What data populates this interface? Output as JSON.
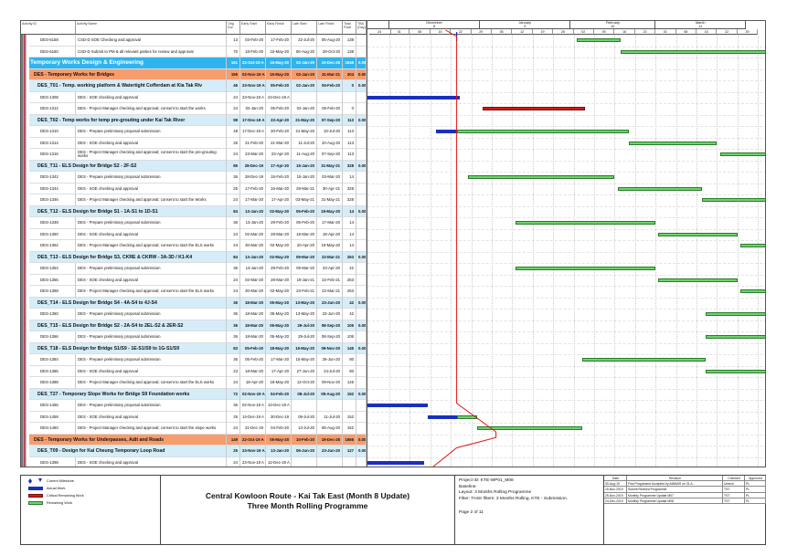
{
  "columns": {
    "id": "Activity ID",
    "name": "Activity Name",
    "dur": "Orig Dur",
    "es": "Early Start",
    "ef": "Early Finish",
    "ls": "Late Start",
    "lf": "Late Finish",
    "tf": "Total Float",
    "tba": "TBA (Day)"
  },
  "timeline": {
    "months": [
      {
        "label": "December",
        "num": "8",
        "start": "01-Dec-19",
        "end": "01-Jan-20"
      },
      {
        "label": "January",
        "num": "9",
        "start": "01-Jan-20",
        "end": "01-Feb-20"
      },
      {
        "label": "February",
        "num": "10",
        "start": "01-Feb-20",
        "end": "01-Mar-20"
      },
      {
        "label": "March",
        "num": "11",
        "start": "01-Mar-20",
        "end": "01-Apr-20"
      }
    ],
    "weeks": [
      "24",
      "01",
      "08",
      "15",
      "22",
      "29",
      "05",
      "12",
      "19",
      "26",
      "02",
      "09",
      "16",
      "23",
      "01",
      "08",
      "15",
      "22",
      "29"
    ],
    "data_date": "24-Dec-19"
  },
  "colors": {
    "actual": "#1a2fbf",
    "critical": "#d01818",
    "remaining": "#6ad56a",
    "group1": "#2fb4ef",
    "group2": "#f79c6c",
    "group3": "#d5edf8"
  },
  "rows": [
    {
      "kind": "act",
      "id": "DES-6158",
      "name": "CSD-D SOE Checking and approval",
      "dur": "13",
      "es": "03-Feb-20",
      "ef": "17-Feb-20",
      "ls": "22-Jul-20",
      "lf": "05-Aug-20",
      "tf": "138",
      "tba": ""
    },
    {
      "kind": "act",
      "id": "DES-6160",
      "name": "CSD-D Submit to PM & all relevant parties for review and approval",
      "dur": "70",
      "es": "18-Feb-20",
      "ef": "15-May-20",
      "ls": "06-Aug-20",
      "lf": "29-Oct-20",
      "tf": "138",
      "tba": ""
    },
    {
      "kind": "l1",
      "name": "Temporary Works Design & Engineering",
      "dur": "161",
      "es": "22-Oct-19 A",
      "ef": "15-May-20",
      "ls": "02-Jan-20",
      "lf": "19-Dec-25",
      "tf": "1645",
      "tba": "0.00"
    },
    {
      "kind": "l2",
      "name": "DES - Temporary Works for Bridges",
      "dur": "155",
      "es": "02-Nov-19 A",
      "ef": "15-May-20",
      "ls": "02-Jan-20",
      "lf": "31-Mar-21",
      "tf": "304",
      "tba": "0.00"
    },
    {
      "kind": "l3",
      "name": "DES_T01 - Temp. working platform & Watertight Cofferdam at Kia Tak Riv",
      "dur": "46",
      "es": "23-Nov-19 A",
      "ef": "05-Feb-20",
      "ls": "02-Jan-20",
      "lf": "05-Feb-20",
      "tf": "0",
      "tba": "0.00"
    },
    {
      "kind": "act",
      "id": "DES-1308",
      "name": "DES - SOE checking and approval",
      "dur": "24",
      "es": "23-Nov-19 A",
      "ef": "24-Dec-19 A",
      "ls": "",
      "lf": "",
      "tf": "",
      "tba": ""
    },
    {
      "kind": "act",
      "id": "DES-1312",
      "name": "DES - Project Manager checking and approval; consent to start the works",
      "dur": "24",
      "es": "02-Jan-20",
      "ef": "05-Feb-20",
      "ls": "02-Jan-20",
      "lf": "05-Feb-20",
      "tf": "0",
      "tba": ""
    },
    {
      "kind": "l3",
      "name": "DES_T02 - Temp works for temp pre-grouting under Kai Tak River",
      "dur": "98",
      "es": "17-Dec-19 A",
      "ef": "23-Apr-20",
      "ls": "21-May-20",
      "lf": "07-Sep-20",
      "tf": "113",
      "tba": "0.00"
    },
    {
      "kind": "act",
      "id": "DES-1310",
      "name": "DES - Prepare preliminary proposal submission",
      "dur": "48",
      "es": "17-Dec-19 A",
      "ef": "20-Feb-20",
      "ls": "21-May-20",
      "lf": "10-Jul-20",
      "tf": "113",
      "tba": ""
    },
    {
      "kind": "act",
      "id": "DES-1314",
      "name": "DES - SOE checking and approval",
      "dur": "26",
      "es": "21-Feb-20",
      "ef": "21-Mar-20",
      "ls": "11-Jul-20",
      "lf": "10-Aug-20",
      "tf": "113",
      "tba": ""
    },
    {
      "kind": "act",
      "id": "DES-1316",
      "name": "DES - Project Manager checking and approval; consent to start the pre-grouting works",
      "dur": "24",
      "es": "23-Mar-20",
      "ef": "23-Apr-20",
      "ls": "11-Aug-20",
      "lf": "07-Sep-20",
      "tf": "113",
      "tba": "",
      "wrap": true
    },
    {
      "kind": "l3",
      "name": "DES_T11 - ELS Design for Bridge S2 - 2F-S2",
      "dur": "85",
      "es": "28-Dec-19",
      "ef": "17-Apr-20",
      "ls": "15-Jan-20",
      "lf": "31-May-21",
      "tf": "328",
      "tba": "0.00"
    },
    {
      "kind": "act",
      "id": "DES-1342",
      "name": "DES - Prepare preliminary proposal submission",
      "dur": "36",
      "es": "28-Dec-19",
      "ef": "15-Feb-20",
      "ls": "15-Jan-20",
      "lf": "03-Mar-20",
      "tf": "14",
      "tba": ""
    },
    {
      "kind": "act",
      "id": "DES-1344",
      "name": "DES - SOE checking and approval",
      "dur": "25",
      "es": "17-Feb-20",
      "ef": "16-Mar-20",
      "ls": "29-Mar-21",
      "lf": "30-Apr-21",
      "tf": "328",
      "tba": ""
    },
    {
      "kind": "act",
      "id": "DES-1346",
      "name": "DES - Project Manager checking and approval; consent to start the Works",
      "dur": "24",
      "es": "17-Mar-20",
      "ef": "17-Apr-20",
      "ls": "03-May-21",
      "lf": "31-May-21",
      "tf": "328",
      "tba": ""
    },
    {
      "kind": "l3",
      "name": "DES_T12 - ELS Design for Bridge S1 - 1A-S1 to 1D-S1",
      "dur": "84",
      "es": "13-Jan-20",
      "ef": "02-May-20",
      "ls": "05-Feb-20",
      "lf": "19-May-20",
      "tf": "14",
      "tba": "0.00"
    },
    {
      "kind": "act",
      "id": "DES-1348",
      "name": "DES - Prepare preliminary proposal submission",
      "dur": "36",
      "es": "13-Jan-20",
      "ef": "29-Feb-20",
      "ls": "05-Feb-20",
      "lf": "17-Mar-20",
      "tf": "14",
      "tba": ""
    },
    {
      "kind": "act",
      "id": "DES-1350",
      "name": "DES - SOE checking and approval",
      "dur": "24",
      "es": "02-Mar-20",
      "ef": "28-Mar-20",
      "ls": "18-Mar-20",
      "lf": "18-Apr-20",
      "tf": "14",
      "tba": ""
    },
    {
      "kind": "act",
      "id": "DES-1352",
      "name": "DES - Project Manager checking and approval; consent to start the ELS works",
      "dur": "24",
      "es": "30-Mar-20",
      "ef": "02-May-20",
      "ls": "20-Apr-20",
      "lf": "19-May-20",
      "tf": "14",
      "tba": ""
    },
    {
      "kind": "l3",
      "name": "DES_T13 - ELS Design for Bridge S3, CKRE & CKRW - 3A-3D / K1-K4",
      "dur": "84",
      "es": "13-Jan-20",
      "ef": "02-May-20",
      "ls": "09-Mar-20",
      "lf": "22-Mar-21",
      "tf": "263",
      "tba": "0.00"
    },
    {
      "kind": "act",
      "id": "DES-1354",
      "name": "DES - Prepare preliminary proposal submission",
      "dur": "36",
      "es": "13-Jan-20",
      "ef": "29-Feb-20",
      "ls": "09-Mar-20",
      "lf": "23-Apr-20",
      "tf": "42",
      "tba": ""
    },
    {
      "kind": "act",
      "id": "DES-1356",
      "name": "DES - SOE checking and approval",
      "dur": "24",
      "es": "02-Mar-20",
      "ef": "28-Mar-20",
      "ls": "19-Jan-21",
      "lf": "22-Feb-21",
      "tf": "263",
      "tba": ""
    },
    {
      "kind": "act",
      "id": "DES-1358",
      "name": "DES - Project Manager checking and approval; consent to start the ELS works",
      "dur": "24",
      "es": "30-Mar-20",
      "ef": "02-May-20",
      "ls": "23-Feb-21",
      "lf": "22-Mar-21",
      "tf": "263",
      "tba": ""
    },
    {
      "kind": "l3",
      "name": "DES_T14 - ELS Design for Bridge S4 - 4A-S4 to 4J-S4",
      "dur": "36",
      "es": "18-Mar-20",
      "ef": "05-May-20",
      "ls": "13-May-20",
      "lf": "23-Jun-20",
      "tf": "42",
      "tba": "0.00"
    },
    {
      "kind": "act",
      "id": "DES-1360",
      "name": "DES - Prepare preliminary proposal submission",
      "dur": "36",
      "es": "18-Mar-20",
      "ef": "05-May-20",
      "ls": "13-May-20",
      "lf": "23-Jun-20",
      "tf": "42",
      "tba": ""
    },
    {
      "kind": "l3",
      "name": "DES_T15 - ELS Design for Bridge S2 - 2A-S4 to 2EL-S2 & 2ER-S2",
      "dur": "36",
      "es": "18-Mar-20",
      "ef": "05-May-20",
      "ls": "29-Jul-20",
      "lf": "08-Sep-20",
      "tf": "106",
      "tba": "0.00"
    },
    {
      "kind": "act",
      "id": "DES-1366",
      "name": "DES - Prepare preliminary proposal submission",
      "dur": "36",
      "es": "18-Mar-20",
      "ef": "05-May-20",
      "ls": "29-Jul-20",
      "lf": "08-Sep-20",
      "tf": "106",
      "tba": ""
    },
    {
      "kind": "l3",
      "name": "DES_T18 - ELS Design for Bridge S1/S9 - 1E-S1/S9 to 1G-S1/S9",
      "dur": "83",
      "es": "05-Feb-20",
      "ef": "18-May-20",
      "ls": "15-May-20",
      "lf": "09-Nov-20",
      "tf": "145",
      "tba": "0.00"
    },
    {
      "kind": "act",
      "id": "DES-1384",
      "name": "DES - Prepare preliminary proposal submission",
      "dur": "36",
      "es": "05-Feb-20",
      "ef": "17-Mar-20",
      "ls": "15-May-20",
      "lf": "26-Jun-20",
      "tf": "80",
      "tba": ""
    },
    {
      "kind": "act",
      "id": "DES-1386",
      "name": "DES - SOE checking and approval",
      "dur": "23",
      "es": "18-Mar-20",
      "ef": "17-Apr-20",
      "ls": "27-Jun-20",
      "lf": "24-Jul-20",
      "tf": "80",
      "tba": ""
    },
    {
      "kind": "act",
      "id": "DES-1388",
      "name": "DES - Project Manager checking and approval; consent to start the ELS works",
      "dur": "24",
      "es": "18-Apr-20",
      "ef": "18-May-20",
      "ls": "12-Oct-20",
      "lf": "09-Nov-20",
      "tf": "145",
      "tba": ""
    },
    {
      "kind": "l3",
      "name": "DES_T27 - Temporary Slope Works for Bridge S9 Foundation works",
      "dur": "72",
      "es": "02-Nov-19 A",
      "ef": "04-Feb-20",
      "ls": "08-Jul-20",
      "lf": "08-Aug-20",
      "tf": "152",
      "tba": "0.00"
    },
    {
      "kind": "act",
      "id": "DES-1456",
      "name": "DES - Prepare preliminary proposal submission",
      "dur": "36",
      "es": "02-Nov-19 A",
      "ef": "13-Dec-19 A",
      "ls": "",
      "lf": "",
      "tf": "",
      "tba": ""
    },
    {
      "kind": "act",
      "id": "DES-1458",
      "name": "DES - SOE checking and approval",
      "dur": "25",
      "es": "14-Dec-19 A",
      "ef": "30-Dec-19",
      "ls": "08-Jul-20",
      "lf": "11-Jul-20",
      "tf": "152",
      "tba": ""
    },
    {
      "kind": "act",
      "id": "DES-1460",
      "name": "DES - Project Manager checking and approval; consent to start the slope works",
      "dur": "24",
      "es": "31-Dec-19",
      "ef": "04-Feb-20",
      "ls": "13-Jul-20",
      "lf": "08-Aug-20",
      "tf": "152",
      "tba": ""
    },
    {
      "kind": "l2",
      "name": "DES - Temporary Works for Underpasses, Adit and Roads",
      "dur": "149",
      "es": "22-Oct-19 A",
      "ef": "05-May-20",
      "ls": "10-Feb-20",
      "lf": "19-Dec-25",
      "tf": "1656",
      "tba": "0.00"
    },
    {
      "kind": "l3",
      "name": "DES_T09 - Design for Kai Cheung Temporary Loop Road",
      "dur": "25",
      "es": "23-Nov-19 A",
      "ef": "13-Jan-20",
      "ls": "06-Jun-20",
      "lf": "23-Jun-20",
      "tf": "127",
      "tba": "0.00"
    },
    {
      "kind": "act",
      "id": "DES-1398",
      "name": "DES - SOE checking and approval",
      "dur": "24",
      "es": "23-Nov-19 A",
      "ef": "12-Dec-19 A",
      "ls": "",
      "lf": "",
      "tf": "",
      "tba": ""
    }
  ],
  "footer": {
    "legend": [
      {
        "label": "Current Milestone",
        "icon": "diamond-milestone"
      },
      {
        "label": "Actual Work",
        "icon": "actual-bar"
      },
      {
        "label": "Critical Remaining Work",
        "icon": "critical-bar"
      },
      {
        "label": "Remaining Work",
        "icon": "remaining-bar"
      }
    ],
    "title_line1": "Central Kowloon Route - Kai Tak East (Month 8 Update)",
    "title_line2": "Three Month Rolling Programme",
    "project_id": "Project ID: KTE-WP01_M08",
    "baseline": "Baseline:",
    "layout": "Layout: 3 Months Rolling Programme",
    "filter": "Filter: TASK filters: 3 Months Rolling, KTE - Submission.",
    "page": "Page 2 of 11",
    "revision_headers": [
      "Date",
      "Revision",
      "Checked",
      "Approved"
    ],
    "revisions": [
      [
        "30-Aug-19",
        "First Programme Accepted by AMMAR on 31 A...",
        "Umesh",
        "PL"
      ],
      [
        "15-Nov-2019",
        "Submit Revised Programme",
        "TST",
        "PL"
      ],
      [
        "25-Nov-2019",
        "Monthly Programme Update M07",
        "TST",
        "PL"
      ],
      [
        "24-Dec-2019",
        "Monthly Programme Update M08",
        "TST",
        "PL"
      ]
    ]
  }
}
